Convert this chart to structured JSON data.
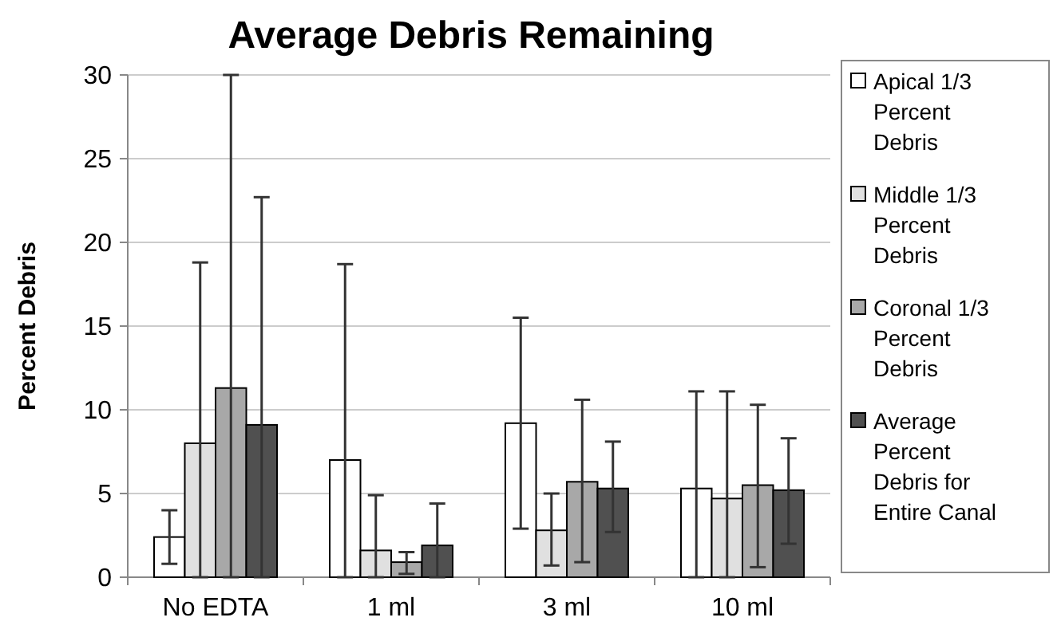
{
  "chart_data": {
    "type": "bar",
    "title": "Average Debris Remaining",
    "ylabel": "Percent Debris",
    "categories": [
      "No EDTA",
      "1 ml",
      "3 ml",
      "10 ml"
    ],
    "series": [
      {
        "name": "Apical 1/3 Percent Debris",
        "color": "#ffffff",
        "values": [
          2.4,
          7.0,
          9.2,
          5.3
        ],
        "errors": [
          [
            0.8,
            4.0
          ],
          [
            0,
            18.7
          ],
          [
            2.9,
            15.5
          ],
          [
            0,
            11.1
          ]
        ]
      },
      {
        "name": "Middle 1/3 Percent Debris",
        "color": "#e0e0e0",
        "values": [
          8.0,
          1.6,
          2.8,
          4.7
        ],
        "errors": [
          [
            0,
            18.8
          ],
          [
            0,
            4.9
          ],
          [
            0.7,
            5.0
          ],
          [
            0,
            11.1
          ]
        ]
      },
      {
        "name": "Coronal 1/3 Percent Debris",
        "color": "#a8a8a8",
        "values": [
          11.3,
          0.9,
          5.7,
          5.5
        ],
        "errors": [
          [
            0,
            30
          ],
          [
            0.2,
            1.5
          ],
          [
            0.9,
            10.6
          ],
          [
            0.6,
            10.3
          ]
        ]
      },
      {
        "name": "Average Percent Debris for Entire Canal",
        "color": "#505050",
        "values": [
          9.1,
          1.9,
          5.3,
          5.2
        ],
        "errors": [
          [
            0,
            22.7
          ],
          [
            0,
            4.4
          ],
          [
            2.7,
            8.1
          ],
          [
            2.0,
            8.3
          ]
        ]
      }
    ],
    "ylim": [
      0,
      30
    ],
    "yticks": [
      0,
      5,
      10,
      15,
      20,
      25,
      30
    ],
    "grid": "y",
    "legend": "right"
  }
}
